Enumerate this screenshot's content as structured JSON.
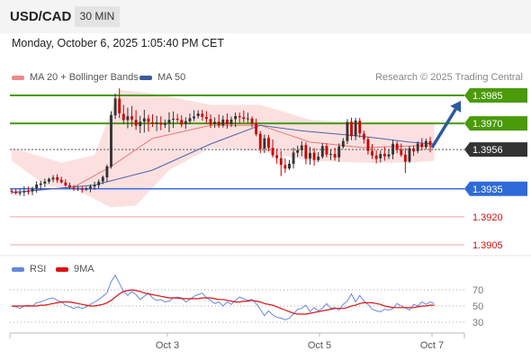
{
  "header": {
    "pair": "USD/CAD",
    "timeframe": "30 MIN"
  },
  "datetime": "Monday, October 6, 2025 1:05:40 PM CET",
  "legend": {
    "ma20": "MA 20 + Bollinger Bands",
    "ma50": "MA 50",
    "research": "Research © 2025 Trading Central",
    "rsi": "RSI",
    "rsi_ma": "9MA"
  },
  "colors": {
    "resistance": "#4a9a0a",
    "support_line": "#3a6ee8",
    "support_label": "#2e6ad8",
    "support_weak": "#f0a0a0",
    "support_weak_text": "#cc1111",
    "current": "#333333",
    "candle_up": "#333333",
    "candle_down": "#cc0000",
    "bollinger": "#fbd5d5",
    "ma20": "#e87878",
    "ma50": "#4a64a8",
    "rsi": "#6688dd",
    "rsi_ma": "#dd1111",
    "arrow": "#2c5aa0"
  },
  "chart_data": [
    {
      "type": "candlestick",
      "levels": [
        {
          "price": "1.3985",
          "kind": "resistance"
        },
        {
          "price": "1.3970",
          "kind": "resistance"
        },
        {
          "price": "1.3956",
          "kind": "current"
        },
        {
          "price": "1.3935",
          "kind": "support"
        },
        {
          "price": "1.3920",
          "kind": "support-weak"
        },
        {
          "price": "1.3905",
          "kind": "support-weak"
        }
      ],
      "x_ticks": [
        "Oct 3",
        "Oct 5",
        "Oct 7"
      ],
      "ohlc": [
        [
          1.3934,
          1.39352,
          1.39322,
          1.39335
        ],
        [
          1.39335,
          1.3935,
          1.39318,
          1.39327
        ],
        [
          1.39328,
          1.39349,
          1.39313,
          1.39329
        ],
        [
          1.39331,
          1.39363,
          1.3931,
          1.39335
        ],
        [
          1.39337,
          1.39362,
          1.39318,
          1.39336
        ],
        [
          1.39336,
          1.39362,
          1.39316,
          1.39351
        ],
        [
          1.39353,
          1.3939,
          1.39329,
          1.39373
        ],
        [
          1.3937,
          1.39393,
          1.39345,
          1.39379
        ],
        [
          1.39378,
          1.39404,
          1.39359,
          1.39388
        ],
        [
          1.39388,
          1.3941,
          1.39377,
          1.39403
        ],
        [
          1.394,
          1.39423,
          1.39385,
          1.3941
        ],
        [
          1.39412,
          1.39428,
          1.39382,
          1.39396
        ],
        [
          1.39398,
          1.39415,
          1.39379,
          1.39385
        ],
        [
          1.39384,
          1.39401,
          1.39361,
          1.39368
        ],
        [
          1.39369,
          1.39383,
          1.39349,
          1.39357
        ],
        [
          1.39355,
          1.3937,
          1.39338,
          1.39349
        ],
        [
          1.3935,
          1.39366,
          1.39339,
          1.39352
        ],
        [
          1.39349,
          1.39363,
          1.39328,
          1.39345
        ],
        [
          1.39345,
          1.39361,
          1.39338,
          1.39351
        ],
        [
          1.39352,
          1.39373,
          1.39331,
          1.39362
        ],
        [
          1.39362,
          1.39388,
          1.39344,
          1.39369
        ],
        [
          1.39369,
          1.394,
          1.39353,
          1.39388
        ],
        [
          1.39389,
          1.39421,
          1.39375,
          1.39413
        ],
        [
          1.39411,
          1.3948,
          1.39389,
          1.3947
        ],
        [
          1.39468,
          1.39765,
          1.39458,
          1.39745
        ],
        [
          1.39743,
          1.3986,
          1.39724,
          1.39834
        ],
        [
          1.39833,
          1.39888,
          1.39729,
          1.39754
        ],
        [
          1.39751,
          1.39799,
          1.39695,
          1.39718
        ],
        [
          1.39718,
          1.39784,
          1.39674,
          1.39738
        ],
        [
          1.39738,
          1.39793,
          1.39682,
          1.39721
        ],
        [
          1.39719,
          1.39771,
          1.39665,
          1.39688
        ],
        [
          1.39686,
          1.39741,
          1.39648,
          1.39709
        ],
        [
          1.3971,
          1.39773,
          1.39651,
          1.39727
        ],
        [
          1.39726,
          1.39746,
          1.39656,
          1.39708
        ],
        [
          1.39706,
          1.39749,
          1.39681,
          1.39698
        ],
        [
          1.39699,
          1.39741,
          1.39659,
          1.39706
        ],
        [
          1.39704,
          1.39738,
          1.39664,
          1.39694
        ],
        [
          1.39692,
          1.39721,
          1.39676,
          1.397
        ],
        [
          1.397,
          1.3976,
          1.39653,
          1.39719
        ],
        [
          1.3972,
          1.39764,
          1.39676,
          1.39725
        ],
        [
          1.39725,
          1.39751,
          1.39704,
          1.39719
        ],
        [
          1.39718,
          1.39744,
          1.39679,
          1.39694
        ],
        [
          1.39696,
          1.39733,
          1.39671,
          1.39712
        ],
        [
          1.39711,
          1.39753,
          1.39695,
          1.39728
        ],
        [
          1.39727,
          1.39771,
          1.39713,
          1.39737
        ],
        [
          1.39739,
          1.3977,
          1.39726,
          1.39753
        ],
        [
          1.39752,
          1.39773,
          1.39715,
          1.39735
        ],
        [
          1.39734,
          1.39766,
          1.397,
          1.39724
        ],
        [
          1.39723,
          1.39749,
          1.39675,
          1.39694
        ],
        [
          1.39696,
          1.39732,
          1.39676,
          1.39708
        ],
        [
          1.39709,
          1.39748,
          1.39677,
          1.3969
        ],
        [
          1.39691,
          1.39742,
          1.39678,
          1.39721
        ],
        [
          1.3972,
          1.39753,
          1.39672,
          1.39696
        ],
        [
          1.39696,
          1.39737,
          1.3968,
          1.39721
        ],
        [
          1.39723,
          1.39758,
          1.3968,
          1.39739
        ],
        [
          1.39739,
          1.39758,
          1.39703,
          1.39733
        ],
        [
          1.39733,
          1.39769,
          1.39706,
          1.39724
        ],
        [
          1.39722,
          1.39757,
          1.39705,
          1.39727
        ],
        [
          1.39726,
          1.39737,
          1.39679,
          1.39701
        ],
        [
          1.39702,
          1.39726,
          1.39631,
          1.39642
        ],
        [
          1.39644,
          1.39659,
          1.3954,
          1.39564
        ],
        [
          1.39565,
          1.3964,
          1.39542,
          1.3962
        ],
        [
          1.39622,
          1.39638,
          1.39551,
          1.39569
        ],
        [
          1.39569,
          1.39614,
          1.39517,
          1.39529
        ],
        [
          1.3953,
          1.39564,
          1.39484,
          1.39514
        ],
        [
          1.39514,
          1.39552,
          1.39418,
          1.39478
        ],
        [
          1.39477,
          1.39512,
          1.39435,
          1.39458
        ],
        [
          1.39459,
          1.39504,
          1.39451,
          1.39484
        ],
        [
          1.39484,
          1.3957,
          1.39458,
          1.39544
        ],
        [
          1.39543,
          1.39581,
          1.3952,
          1.39556
        ],
        [
          1.39557,
          1.39605,
          1.39524,
          1.39582
        ],
        [
          1.39584,
          1.396,
          1.39481,
          1.39511
        ],
        [
          1.39511,
          1.39575,
          1.39479,
          1.39542
        ],
        [
          1.39543,
          1.39568,
          1.39474,
          1.39505
        ],
        [
          1.39504,
          1.39546,
          1.39492,
          1.39522
        ],
        [
          1.39521,
          1.39595,
          1.39511,
          1.39579
        ],
        [
          1.3958,
          1.39594,
          1.39518,
          1.39533
        ],
        [
          1.39532,
          1.39561,
          1.39504,
          1.39536
        ],
        [
          1.39536,
          1.3957,
          1.39501,
          1.39517
        ],
        [
          1.39518,
          1.39593,
          1.39494,
          1.39577
        ],
        [
          1.39575,
          1.39621,
          1.39565,
          1.39606
        ],
        [
          1.39606,
          1.39723,
          1.3959,
          1.39708
        ],
        [
          1.39709,
          1.39731,
          1.39611,
          1.39632
        ],
        [
          1.39631,
          1.3973,
          1.3961,
          1.39715
        ],
        [
          1.39714,
          1.3973,
          1.39623,
          1.39646
        ],
        [
          1.39645,
          1.39662,
          1.39592,
          1.39615
        ],
        [
          1.39616,
          1.39628,
          1.39533,
          1.39553
        ],
        [
          1.39552,
          1.3959,
          1.3951,
          1.39528
        ],
        [
          1.39528,
          1.39557,
          1.39486,
          1.3951
        ],
        [
          1.39513,
          1.39554,
          1.39491,
          1.39536
        ],
        [
          1.39537,
          1.39574,
          1.395,
          1.39523
        ],
        [
          1.39523,
          1.3956,
          1.39509,
          1.39534
        ],
        [
          1.39534,
          1.39612,
          1.39508,
          1.39591
        ],
        [
          1.39591,
          1.39605,
          1.3954,
          1.39559
        ],
        [
          1.39559,
          1.39592,
          1.39521,
          1.39531
        ],
        [
          1.39533,
          1.39568,
          1.39434,
          1.39495
        ],
        [
          1.39496,
          1.3958,
          1.39488,
          1.39567
        ],
        [
          1.39566,
          1.39582,
          1.39526,
          1.3955
        ],
        [
          1.39552,
          1.39604,
          1.3954,
          1.39592
        ],
        [
          1.39592,
          1.39621,
          1.39555,
          1.39573
        ],
        [
          1.39573,
          1.39619,
          1.39561,
          1.39606
        ],
        [
          1.39605,
          1.39628,
          1.39545,
          1.39585
        ]
      ],
      "ma20": [
        [
          0,
          1.3933
        ],
        [
          15,
          1.3936
        ],
        [
          24,
          1.3947
        ],
        [
          34,
          1.3962
        ],
        [
          48,
          1.3969
        ],
        [
          60,
          1.3969
        ],
        [
          72,
          1.396
        ],
        [
          85,
          1.3957
        ],
        [
          97,
          1.3958
        ],
        [
          102,
          1.3958
        ]
      ],
      "ma50": [
        [
          0,
          1.3933
        ],
        [
          20,
          1.3937
        ],
        [
          34,
          1.3945
        ],
        [
          48,
          1.3959
        ],
        [
          60,
          1.3969
        ],
        [
          70,
          1.3966
        ],
        [
          85,
          1.3963
        ],
        [
          96,
          1.396
        ],
        [
          102,
          1.3959
        ]
      ],
      "bollinger": {
        "upper": [
          [
            0,
            1.3957
          ],
          [
            12,
            1.3949
          ],
          [
            20,
            1.3953
          ],
          [
            26,
            1.3988
          ],
          [
            34,
            1.3986
          ],
          [
            48,
            1.398
          ],
          [
            60,
            1.398
          ],
          [
            72,
            1.3972
          ],
          [
            85,
            1.397
          ],
          [
            96,
            1.397
          ],
          [
            102,
            1.397
          ]
        ],
        "lower": [
          [
            0,
            1.395
          ],
          [
            8,
            1.3937
          ],
          [
            16,
            1.3934
          ],
          [
            24,
            1.3925
          ],
          [
            30,
            1.3926
          ],
          [
            38,
            1.3945
          ],
          [
            48,
            1.3957
          ],
          [
            60,
            1.3955
          ],
          [
            72,
            1.395
          ],
          [
            85,
            1.3949
          ],
          [
            96,
            1.3949
          ],
          [
            102,
            1.395
          ]
        ]
      },
      "projection_target": "1.3985"
    },
    {
      "type": "line",
      "title": "RSI",
      "y_ticks": [
        "70",
        "50",
        "30"
      ],
      "series": [
        {
          "name": "RSI",
          "values": [
            50,
            49,
            47,
            50,
            51,
            50,
            54,
            55,
            57,
            59,
            60,
            57,
            55,
            51,
            49,
            47,
            49,
            47,
            49,
            52,
            55,
            58,
            62,
            66,
            80,
            88,
            78,
            68,
            63,
            68,
            64,
            58,
            62,
            66,
            60,
            57,
            58,
            55,
            56,
            60,
            61,
            60,
            55,
            58,
            62,
            64,
            66,
            60,
            57,
            53,
            55,
            50,
            55,
            52,
            57,
            61,
            59,
            57,
            58,
            53,
            46,
            38,
            44,
            39,
            36,
            35,
            33,
            35,
            40,
            46,
            47,
            51,
            43,
            48,
            44,
            47,
            53,
            47,
            48,
            45,
            52,
            56,
            65,
            55,
            63,
            56,
            52,
            46,
            44,
            43,
            46,
            45,
            47,
            53,
            50,
            48,
            45,
            52,
            50,
            55,
            52,
            55,
            53
          ]
        },
        {
          "name": "9MA",
          "values": [
            50,
            50,
            50,
            50,
            50,
            50,
            50,
            51,
            51,
            52,
            53,
            54,
            55,
            55,
            55,
            54,
            53,
            52,
            51,
            50,
            50,
            51,
            52,
            54,
            57,
            61,
            65,
            68,
            69,
            70,
            69,
            68,
            66,
            65,
            64,
            63,
            62,
            61,
            60,
            60,
            60,
            59,
            59,
            59,
            59,
            59,
            60,
            60,
            60,
            59,
            58,
            58,
            57,
            56,
            55,
            55,
            56,
            56,
            57,
            56,
            55,
            53,
            52,
            51,
            49,
            47,
            45,
            43,
            41,
            40,
            40,
            40,
            41,
            42,
            43,
            44,
            45,
            46,
            47,
            47,
            47,
            48,
            50,
            51,
            53,
            54,
            54,
            54,
            53,
            52,
            50,
            49,
            48,
            48,
            48,
            48,
            48,
            48,
            49,
            50,
            50,
            51,
            51
          ]
        }
      ]
    }
  ]
}
